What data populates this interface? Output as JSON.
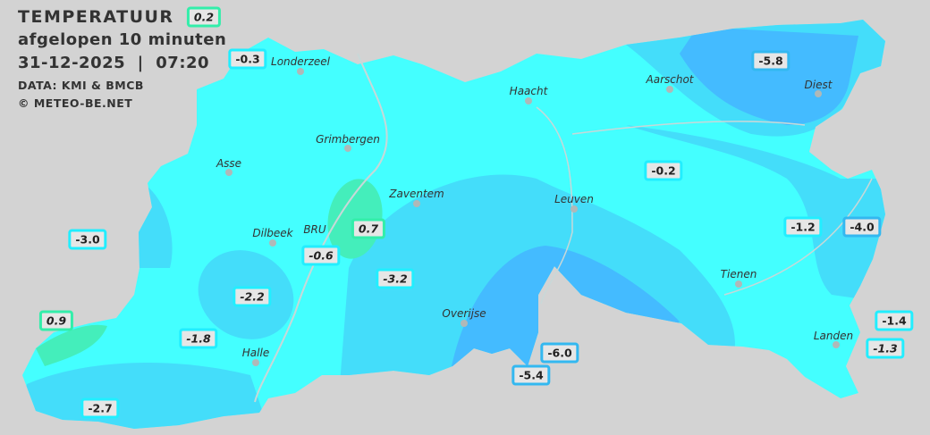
{
  "header": {
    "title": "TEMPERATUUR",
    "subtitle": "afgelopen 10 minuten",
    "datetime": "31-12-2025  |  07:20",
    "source": "DATA: KMI & BMCB",
    "copyright": "© METEO-BE.NET"
  },
  "colors": {
    "background": "#d3d3d3",
    "zone_cold_mild": "#44ffff",
    "zone_cold": "#44ddfa",
    "zone_colder": "#44bbff",
    "zone_above_zero": "#44eebb"
  },
  "cities": [
    "Londerzeel",
    "Haacht",
    "Aarschot",
    "Diest",
    "Grimbergen",
    "Asse",
    "Zaventem",
    "Leuven",
    "Dilbeek",
    "BRU",
    "Tienen",
    "Overijse",
    "Halle",
    "Landen"
  ],
  "readings": [
    "0.2",
    "-0.3",
    "-5.8",
    "-0.2",
    "-3.0",
    "0.7",
    "-0.6",
    "-3.2",
    "-2.2",
    "-1.2",
    "-4.0",
    "0.9",
    "-1.8",
    "-6.0",
    "-5.4",
    "-2.7",
    "-1.4",
    "-1.3"
  ]
}
